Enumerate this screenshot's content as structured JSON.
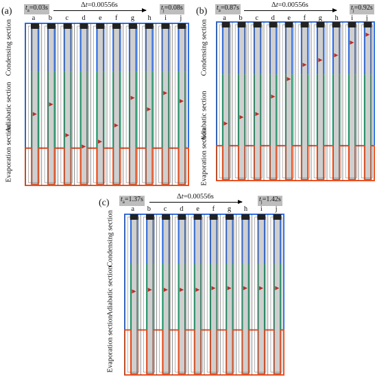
{
  "panels": [
    {
      "label": "(a)",
      "ta_prefix": "t",
      "ta_sub": "a",
      "ta_value": "=0.03s",
      "tj_prefix": "t",
      "tj_sub": "j",
      "tj_value": "=0.08s",
      "dt_prefix": "Δ",
      "dt_var": "t",
      "dt_value": "=0.00556s",
      "frames": [
        "a",
        "b",
        "c",
        "d",
        "e",
        "f",
        "g",
        "h",
        "i",
        "j"
      ],
      "sections": {
        "condensing": "Condensing section",
        "adiabatic": "Adiabatic section",
        "evaporation": "Evaporation section"
      }
    },
    {
      "label": "(b)",
      "ta_prefix": "t",
      "ta_sub": "a",
      "ta_value": "=0.87s",
      "tj_prefix": "t",
      "tj_sub": "j",
      "tj_value": "=0.92s",
      "dt_prefix": "Δ",
      "dt_var": "t",
      "dt_value": "=0.00556s",
      "frames": [
        "a",
        "b",
        "c",
        "d",
        "e",
        "f",
        "g",
        "h",
        "i",
        "j"
      ],
      "sections": {
        "condensing": "Condensing section",
        "adiabatic": "Adiabatic section",
        "evaporation": "Evaporation section"
      }
    },
    {
      "label": "(c)",
      "ta_prefix": "t",
      "ta_sub": "a",
      "ta_value": "=1.37s",
      "tj_prefix": "t",
      "tj_sub": "j",
      "tj_value": "=1.42s",
      "dt_prefix": "Δ",
      "dt_var": "t",
      "dt_value": "=0.00556s",
      "frames": [
        "a",
        "b",
        "c",
        "d",
        "e",
        "f",
        "g",
        "h",
        "i",
        "j"
      ],
      "sections": {
        "condensing": "Condensing section",
        "adiabatic": "Adiabatic section",
        "evaporation": "Evaporation section"
      }
    }
  ],
  "colors": {
    "condensing": "#2f6fe8",
    "adiabatic": "#1f9a6c",
    "evaporation": "#f0501e",
    "channel": "#cfcfcf",
    "bubble_marker": "#b5302a"
  },
  "bubble_level": {
    "a": [
      0.56,
      0.5,
      0.69,
      0.76,
      0.73,
      0.63,
      0.46,
      0.53,
      0.43,
      0.48
    ],
    "b": [
      0.64,
      0.6,
      0.58,
      0.47,
      0.36,
      0.27,
      0.24,
      0.21,
      0.13,
      0.08
    ],
    "c": [
      0.48,
      0.47,
      0.47,
      0.47,
      0.47,
      0.46,
      0.46,
      0.46,
      0.46,
      0.46
    ]
  }
}
